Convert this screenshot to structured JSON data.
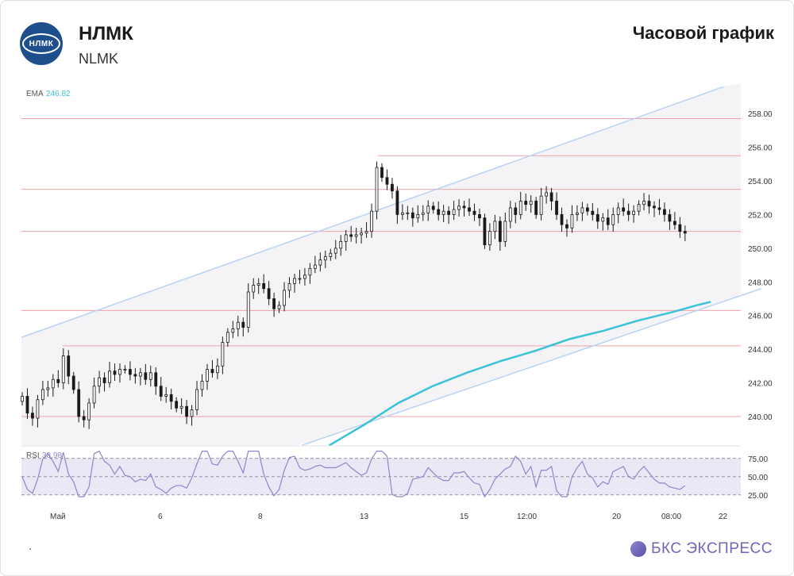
{
  "header": {
    "logo_text": "НЛМК",
    "title": "НЛМК",
    "subtitle": "NLMK",
    "chart_title": "Часовой график"
  },
  "brand": {
    "name": "БКС ЭКСПРЕСС"
  },
  "colors": {
    "channel_line": "#b9d3f2",
    "resistance_line": "#f0a0a8",
    "ema_line": "#3cc2d6",
    "rsi_line": "#8e86c8",
    "rsi_band": "#ebe8f6",
    "candle": "#1a1a1a"
  },
  "chart_data": [
    {
      "type": "candlestick",
      "indicator": {
        "name": "EMA",
        "value": "246.82"
      },
      "y_ticks": [
        "258.00",
        "256.00",
        "254.00",
        "252.00",
        "250.00",
        "248.00",
        "246.00",
        "244.00",
        "242.00",
        "240.00"
      ],
      "ylim": [
        238.3,
        259.8
      ],
      "x_ticks": [
        "Май",
        "6",
        "8",
        "13",
        "15",
        "12:00",
        "20",
        "08:00",
        "22"
      ],
      "horizontal_levels": [
        257.7,
        255.5,
        253.5,
        251.0,
        246.3,
        244.2,
        240.0
      ],
      "trend_channel": {
        "upper": [
          [
            0,
            244.7
          ],
          [
            205,
            259.6
          ]
        ],
        "lower": [
          [
            82,
            238.3
          ],
          [
            216,
            247.6
          ]
        ]
      },
      "ema": [
        [
          90,
          238.3
        ],
        [
          100,
          239.5
        ],
        [
          110,
          240.8
        ],
        [
          120,
          241.8
        ],
        [
          130,
          242.6
        ],
        [
          140,
          243.3
        ],
        [
          150,
          243.9
        ],
        [
          160,
          244.6
        ],
        [
          170,
          245.1
        ],
        [
          180,
          245.7
        ],
        [
          190,
          246.2
        ],
        [
          197,
          246.6
        ],
        [
          201,
          246.8
        ]
      ],
      "closes": [
        241.2,
        240.2,
        239.9,
        241.0,
        241.6,
        241.7,
        242.2,
        242.0,
        243.6,
        242.4,
        241.6,
        240.0,
        239.8,
        240.8,
        241.8,
        242.3,
        242.0,
        242.7,
        242.5,
        242.8,
        242.8,
        242.5,
        242.4,
        242.6,
        242.2,
        242.6,
        241.8,
        241.2,
        241.3,
        240.9,
        240.5,
        240.6,
        240.0,
        240.4,
        241.6,
        242.1,
        242.8,
        242.6,
        243.0,
        244.4,
        245.0,
        245.2,
        245.6,
        245.3,
        247.4,
        247.8,
        247.9,
        247.6,
        247.0,
        246.4,
        246.6,
        247.5,
        247.9,
        248.2,
        248.2,
        248.4,
        248.8,
        249.0,
        249.3,
        249.5,
        249.7,
        250.0,
        250.4,
        250.8,
        250.7,
        250.8,
        250.9,
        251.0,
        252.2,
        254.8,
        254.2,
        253.8,
        253.4,
        252.0,
        252.1,
        252.1,
        251.8,
        252.0,
        252.1,
        252.5,
        252.3,
        252.0,
        252.2,
        252.0,
        252.3,
        252.5,
        252.4,
        252.2,
        252.0,
        251.8,
        250.2,
        251.0,
        251.6,
        250.4,
        251.6,
        252.4,
        252.0,
        252.8,
        252.6,
        252.8,
        252.0,
        253.1,
        253.3,
        252.8,
        252.0,
        251.4,
        251.2,
        252.0,
        252.1,
        252.4,
        252.2,
        252.0,
        251.6,
        251.8,
        251.4,
        252.0,
        252.4,
        252.2,
        252.0,
        252.2,
        252.6,
        252.8,
        252.5,
        252.4,
        252.3,
        252.0,
        251.6,
        251.4,
        251.0,
        250.9
      ],
      "rsi": {
        "label": "RSI",
        "value": "38.98",
        "y_ticks": [
          "75.00",
          "50.00",
          "25.00"
        ],
        "levels": [
          70,
          50,
          30
        ]
      }
    }
  ]
}
